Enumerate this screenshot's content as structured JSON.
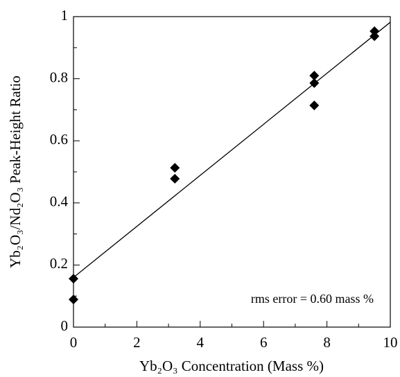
{
  "chart_data": {
    "type": "scatter",
    "x_label": "Yb₂O₃ Concentration (Mass %)",
    "y_label": "Yb₂O₃/Nd₂O₃ Peak-Height Ratio",
    "annotation": "rms error = 0.60 mass %",
    "series": [
      {
        "color": "#000000",
        "marker": "diamond",
        "x": [
          0,
          0,
          3.2,
          3.2,
          7.6,
          7.6,
          7.6,
          9.5,
          9.5
        ],
        "values": [
          0.156,
          0.089,
          0.513,
          0.478,
          0.81,
          0.786,
          0.714,
          0.953,
          0.937
        ]
      },
      {
        "color": "#000000",
        "marker": "line",
        "x": [
          0,
          10
        ],
        "values": [
          0.16,
          0.982
        ]
      }
    ],
    "xlim": [
      0,
      10
    ],
    "xticks": [
      0,
      2,
      4,
      6,
      8,
      10
    ],
    "xminorticks": [
      1,
      3,
      5,
      7,
      9
    ],
    "ylim": [
      0,
      1
    ],
    "yticks": [
      0,
      0.2,
      0.4,
      0.6,
      0.8,
      1
    ],
    "yminorticks": [
      0.1,
      0.3,
      0.5,
      0.7,
      0.9
    ],
    "grid": false
  }
}
